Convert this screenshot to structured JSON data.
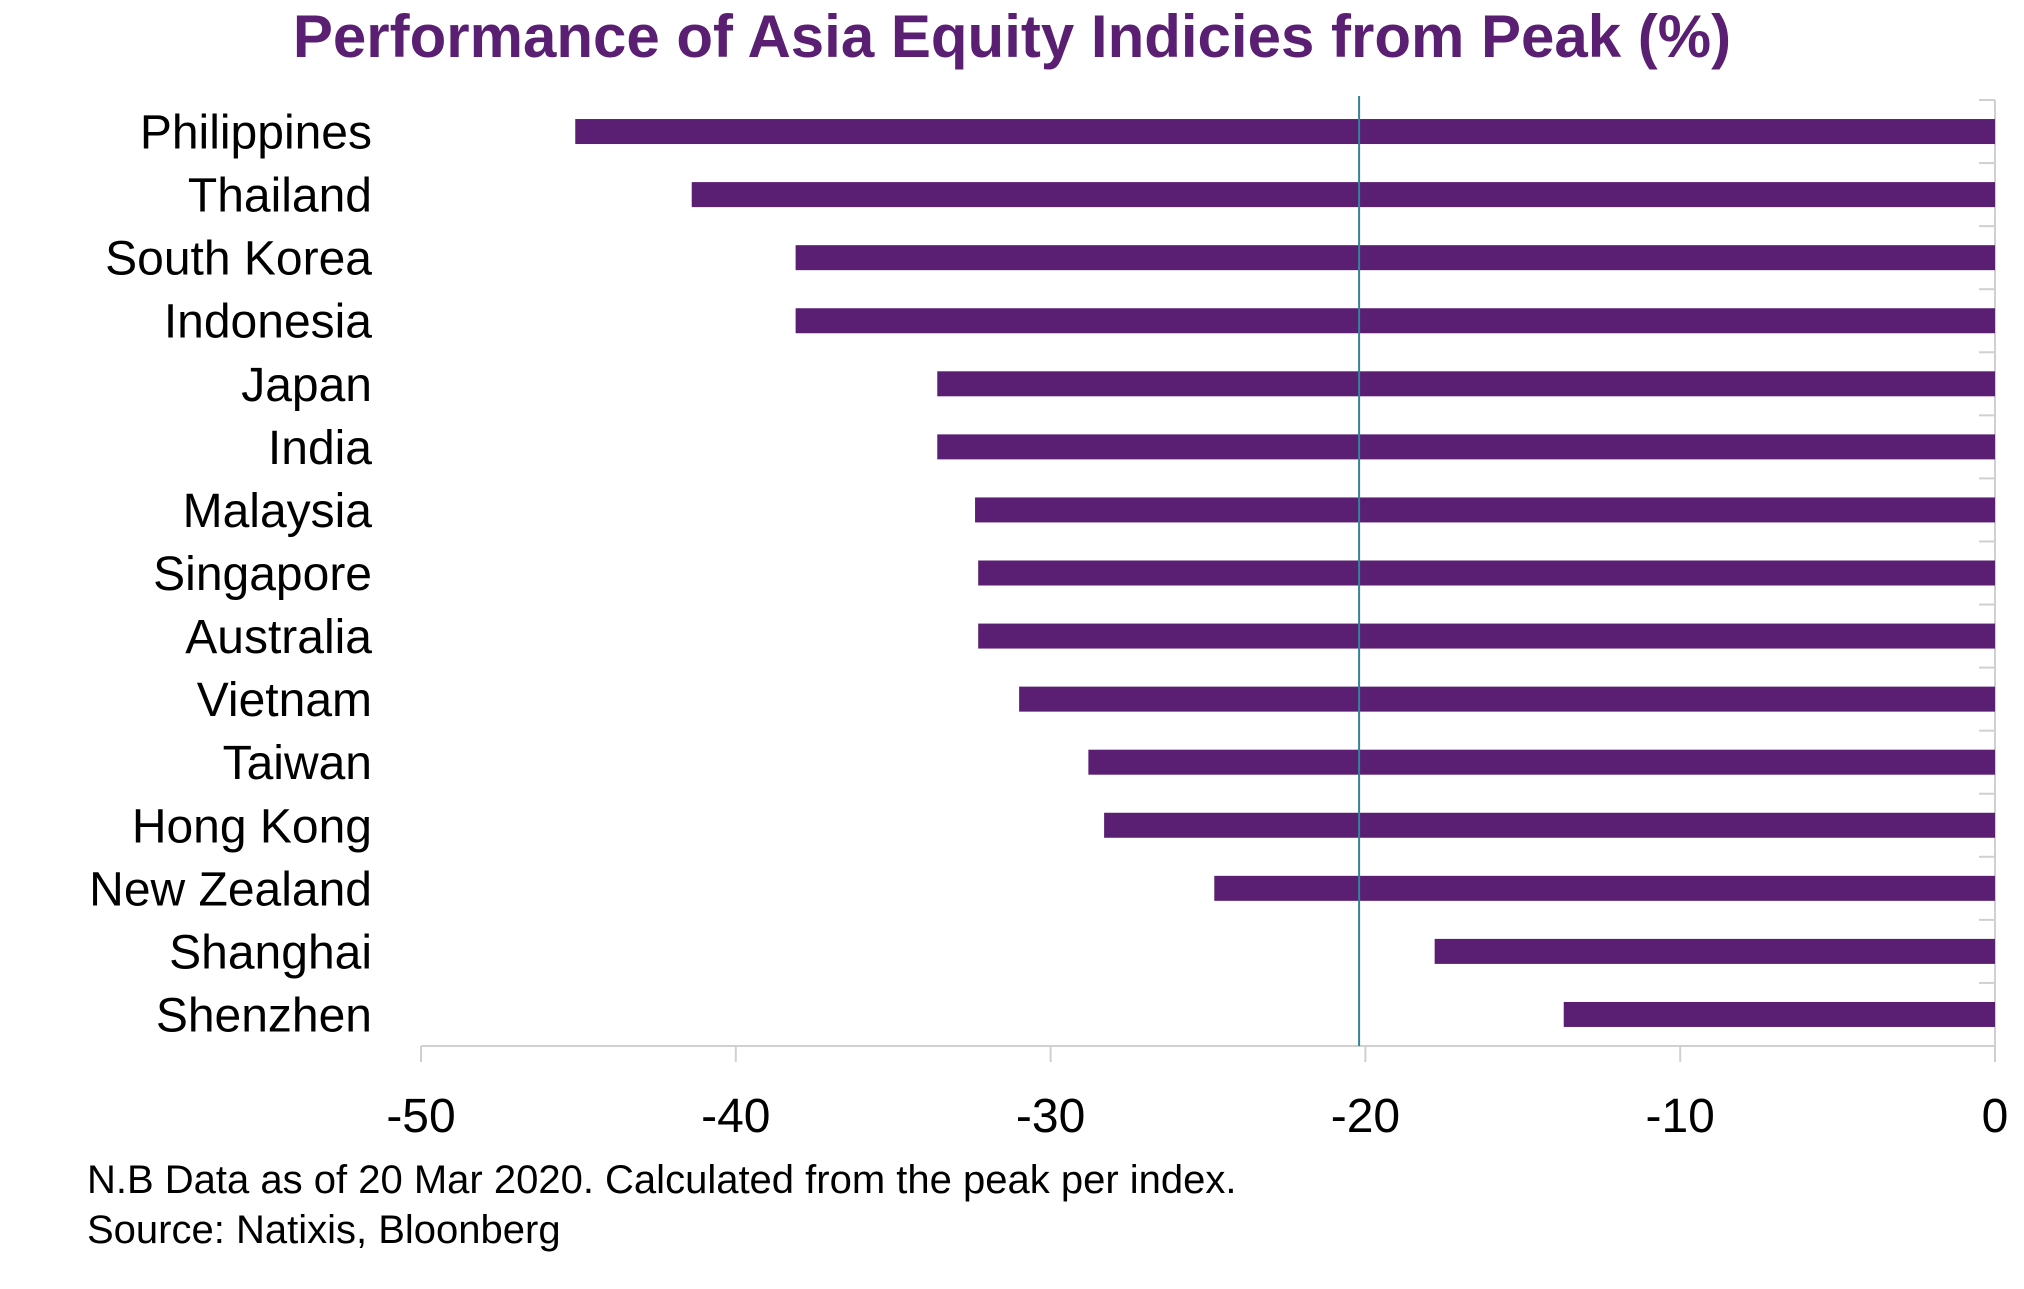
{
  "chart_data": {
    "type": "bar",
    "orientation": "horizontal",
    "title": "Performance of Asia Equity Indicies from Peak (%)",
    "categories": [
      "Philippines",
      "Thailand",
      "South Korea",
      "Indonesia",
      "Japan",
      "India",
      "Malaysia",
      "Singapore",
      "Australia",
      "Vietnam",
      "Taiwan",
      "Hong Kong",
      "New Zealand",
      "Shanghai",
      "Shenzhen"
    ],
    "values": [
      -45.1,
      -41.4,
      -38.1,
      -38.1,
      -33.6,
      -33.6,
      -32.4,
      -32.3,
      -32.3,
      -31.0,
      -28.8,
      -28.3,
      -24.8,
      -17.8,
      -13.7
    ],
    "xlim": [
      -50,
      0
    ],
    "xticks": [
      "-50",
      "-40",
      "-30",
      "-20",
      "-10",
      "0"
    ],
    "reference_line": -20.2,
    "bar_color": "#5a1f72",
    "reference_line_color": "#31849b",
    "xlabel": "",
    "ylabel": ""
  },
  "notes": {
    "line1": "N.B Data as of 20 Mar 2020. Calculated from the peak per index.",
    "line2": "Source: Natixis, Bloonberg"
  }
}
